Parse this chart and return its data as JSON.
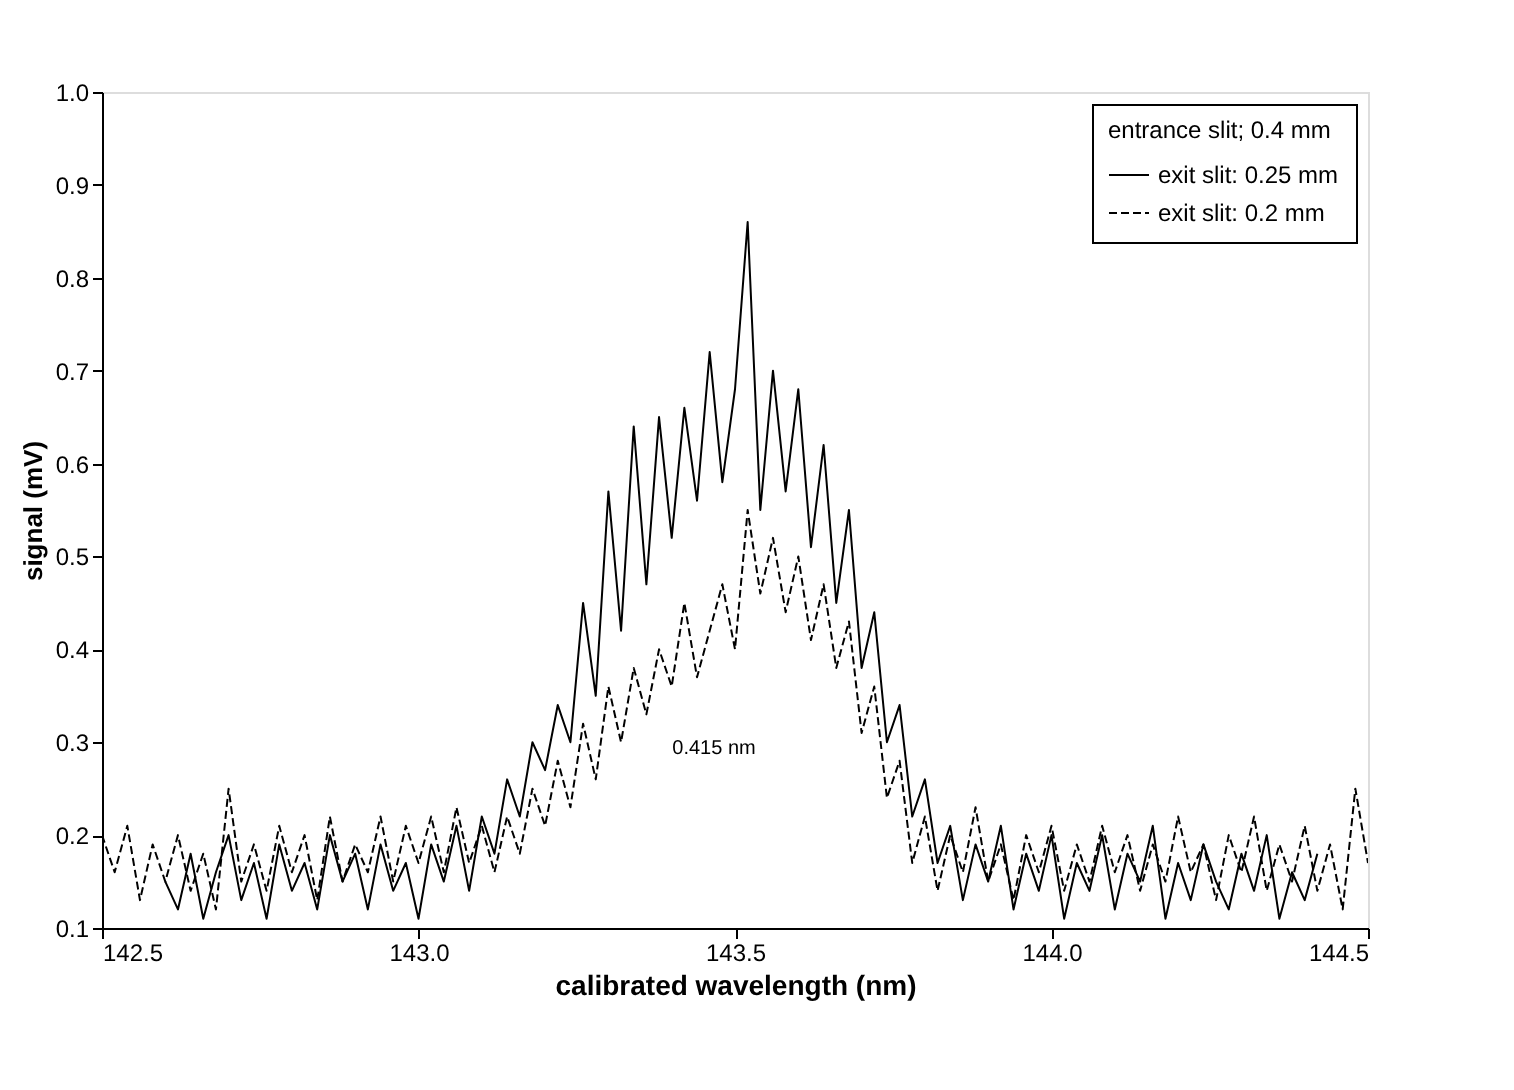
{
  "chart_data": {
    "type": "line",
    "xlabel": "calibrated wavelength (nm)",
    "ylabel": "signal (mV)",
    "legend_title": "entrance slit; 0.4 mm",
    "xlim": [
      142.5,
      144.5
    ],
    "xticks": [
      142.5,
      {
        "value": 143,
        "label": "143.0"
      },
      143.5,
      {
        "value": 144,
        "label": "144.0"
      },
      144.5
    ],
    "ylim": [
      0.1,
      1.0
    ],
    "yticks": [
      0.1,
      0.2,
      0.3,
      0.4,
      0.5,
      0.6,
      0.7,
      0.8,
      0.9,
      {
        "value": 1,
        "label": "1.0"
      }
    ],
    "grid": false,
    "legend": "top right",
    "marker": "none",
    "annotations": [
      "0.415 nm"
    ],
    "series": [
      {
        "name": "exit slit: 0.25 mm",
        "color": "#000000",
        "line_style": "solid",
        "x": [
          142.6,
          142.62,
          142.64,
          142.66,
          142.68,
          142.7,
          142.72,
          142.74,
          142.76,
          142.78,
          142.8,
          142.82,
          142.84,
          142.86,
          142.88,
          142.9,
          142.92,
          142.94,
          142.96,
          142.98,
          143.0,
          143.02,
          143.04,
          143.06,
          143.08,
          143.1,
          143.12,
          143.14,
          143.16,
          143.18,
          143.2,
          143.22,
          143.24,
          143.26,
          143.28,
          143.3,
          143.32,
          143.34,
          143.36,
          143.38,
          143.4,
          143.42,
          143.44,
          143.46,
          143.48,
          143.5,
          143.52,
          143.54,
          143.56,
          143.58,
          143.6,
          143.62,
          143.64,
          143.66,
          143.68,
          143.7,
          143.72,
          143.74,
          143.76,
          143.78,
          143.8,
          143.82,
          143.84,
          143.86,
          143.88,
          143.9,
          143.92,
          143.94,
          143.96,
          143.98,
          144.0,
          144.02,
          144.04,
          144.06,
          144.08,
          144.1,
          144.12,
          144.14,
          144.16,
          144.18,
          144.2,
          144.22,
          144.24,
          144.26,
          144.28,
          144.3,
          144.32,
          144.34,
          144.36,
          144.38,
          144.4,
          144.42
        ],
        "values": [
          0.15,
          0.12,
          0.18,
          0.11,
          0.16,
          0.2,
          0.13,
          0.17,
          0.11,
          0.19,
          0.14,
          0.17,
          0.12,
          0.2,
          0.15,
          0.18,
          0.12,
          0.19,
          0.14,
          0.17,
          0.11,
          0.19,
          0.15,
          0.21,
          0.14,
          0.22,
          0.18,
          0.26,
          0.22,
          0.3,
          0.27,
          0.34,
          0.3,
          0.45,
          0.35,
          0.57,
          0.42,
          0.64,
          0.47,
          0.65,
          0.52,
          0.66,
          0.56,
          0.72,
          0.58,
          0.68,
          0.86,
          0.55,
          0.7,
          0.57,
          0.68,
          0.51,
          0.62,
          0.45,
          0.55,
          0.38,
          0.44,
          0.3,
          0.34,
          0.22,
          0.26,
          0.17,
          0.21,
          0.13,
          0.19,
          0.15,
          0.21,
          0.12,
          0.18,
          0.14,
          0.2,
          0.11,
          0.17,
          0.14,
          0.2,
          0.12,
          0.18,
          0.15,
          0.21,
          0.11,
          0.17,
          0.13,
          0.19,
          0.15,
          0.12,
          0.18,
          0.14,
          0.2,
          0.11,
          0.16,
          0.13,
          0.18
        ]
      },
      {
        "name": "exit slit: 0.2 mm",
        "color": "#000000",
        "line_style": "dashed",
        "x": [
          142.5,
          142.52,
          142.54,
          142.56,
          142.58,
          142.6,
          142.62,
          142.64,
          142.66,
          142.68,
          142.7,
          142.72,
          142.74,
          142.76,
          142.78,
          142.8,
          142.82,
          142.84,
          142.86,
          142.88,
          142.9,
          142.92,
          142.94,
          142.96,
          142.98,
          143.0,
          143.02,
          143.04,
          143.06,
          143.08,
          143.1,
          143.12,
          143.14,
          143.16,
          143.18,
          143.2,
          143.22,
          143.24,
          143.26,
          143.28,
          143.3,
          143.32,
          143.34,
          143.36,
          143.38,
          143.4,
          143.42,
          143.44,
          143.46,
          143.48,
          143.5,
          143.52,
          143.54,
          143.56,
          143.58,
          143.6,
          143.62,
          143.64,
          143.66,
          143.68,
          143.7,
          143.72,
          143.74,
          143.76,
          143.78,
          143.8,
          143.82,
          143.84,
          143.86,
          143.88,
          143.9,
          143.92,
          143.94,
          143.96,
          143.98,
          144.0,
          144.02,
          144.04,
          144.06,
          144.08,
          144.1,
          144.12,
          144.14,
          144.16,
          144.18,
          144.2,
          144.22,
          144.24,
          144.26,
          144.28,
          144.3,
          144.32,
          144.34,
          144.36,
          144.38,
          144.4,
          144.42,
          144.44,
          144.46,
          144.48,
          144.5
        ],
        "values": [
          0.2,
          0.16,
          0.21,
          0.13,
          0.19,
          0.15,
          0.2,
          0.14,
          0.18,
          0.12,
          0.25,
          0.15,
          0.19,
          0.14,
          0.21,
          0.16,
          0.2,
          0.13,
          0.22,
          0.15,
          0.19,
          0.16,
          0.22,
          0.15,
          0.21,
          0.17,
          0.22,
          0.16,
          0.23,
          0.17,
          0.21,
          0.16,
          0.22,
          0.18,
          0.25,
          0.21,
          0.28,
          0.23,
          0.32,
          0.26,
          0.36,
          0.3,
          0.38,
          0.33,
          0.4,
          0.36,
          0.45,
          0.37,
          0.42,
          0.47,
          0.4,
          0.55,
          0.46,
          0.52,
          0.44,
          0.5,
          0.41,
          0.47,
          0.38,
          0.43,
          0.31,
          0.36,
          0.24,
          0.28,
          0.17,
          0.22,
          0.14,
          0.2,
          0.16,
          0.23,
          0.15,
          0.19,
          0.13,
          0.2,
          0.16,
          0.21,
          0.14,
          0.19,
          0.15,
          0.21,
          0.16,
          0.2,
          0.14,
          0.19,
          0.15,
          0.22,
          0.16,
          0.19,
          0.13,
          0.2,
          0.16,
          0.22,
          0.14,
          0.19,
          0.15,
          0.21,
          0.14,
          0.19,
          0.12,
          0.25,
          0.17
        ]
      }
    ]
  }
}
